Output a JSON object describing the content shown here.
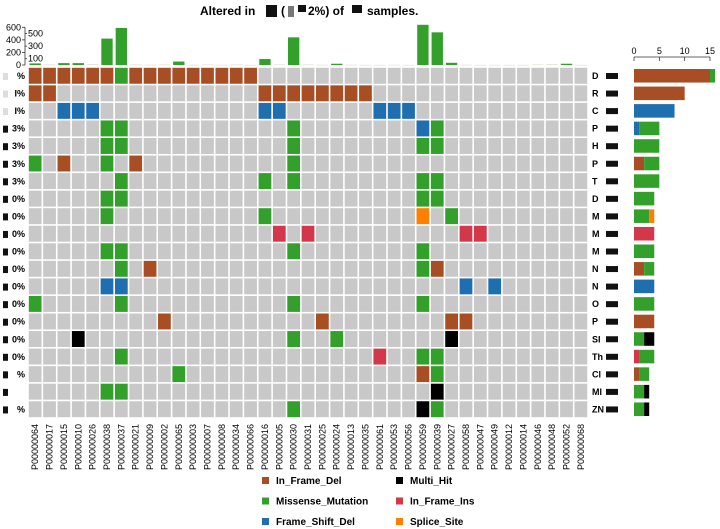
{
  "chart_data": {
    "type": "heatmap",
    "title_parts": [
      "Altered in",
      "(",
      "2%) of",
      "samples."
    ],
    "colors": {
      "In_Frame_Del": "#A84E24",
      "Missense_Mutation": "#33A02C",
      "Frame_Shift_Del": "#1F6FB0",
      "Multi_Hit": "#000000",
      "In_Frame_Ins": "#D2374A",
      "Splice_Site": "#FF7F00",
      "none": "#C8C8C8"
    },
    "codes": {
      "F": "In_Frame_Del",
      "M": "Missense_Mutation",
      "S": "Frame_Shift_Del",
      "H": "Multi_Hit",
      "I": "In_Frame_Ins",
      "P": "Splice_Site"
    },
    "samples": [
      "P00000064",
      "P00000017",
      "P00000015",
      "P00000010",
      "P00000026",
      "P00000038",
      "P00000037",
      "P00000021",
      "P00000009",
      "P00000002",
      "P00000065",
      "P00000003",
      "P00000007",
      "P00000008",
      "P00000034",
      "P00000066",
      "P00000016",
      "P00000005",
      "P00000030",
      "P00000031",
      "P00000025",
      "P00000024",
      "P00000013",
      "P00000035",
      "P00000061",
      "P00000053",
      "P00000056",
      "P00000059",
      "P00000039",
      "P00000027",
      "P00000058",
      "P00000047",
      "P00000049",
      "P00000012",
      "P00000014",
      "P00000046",
      "P00000048",
      "P00000052",
      "P00000068"
    ],
    "tmb": {
      "axis_ticks": [
        0,
        100,
        200,
        300,
        400,
        500,
        600
      ],
      "ylim": [
        0,
        600
      ],
      "values": [
        25,
        10,
        30,
        30,
        15,
        420,
        590,
        10,
        5,
        10,
        55,
        5,
        10,
        5,
        10,
        3,
        95,
        10,
        440,
        10,
        5,
        20,
        5,
        3,
        3,
        5,
        3,
        640,
        520,
        35,
        5,
        3,
        3,
        3,
        3,
        10,
        15,
        20,
        3
      ]
    },
    "gene_bar": {
      "axis_ticks": [
        0,
        5,
        10,
        15
      ],
      "xlim": [
        0,
        15
      ]
    },
    "genes": [
      {
        "name": "D",
        "pct": "%",
        "muts": "F:0-5,7-15;M:6"
      },
      {
        "name": "R",
        "pct": "I%",
        "muts": "F:0-1,16-23"
      },
      {
        "name": "C",
        "pct": "I%",
        "muts": "S:2-4,16-17,24-26"
      },
      {
        "name": "P",
        "pct": "3%",
        "muts": "M:5-6,18,28;S:27"
      },
      {
        "name": "H",
        "pct": "3%",
        "muts": "M:5-6,18,27-28"
      },
      {
        "name": "P",
        "pct": "3%",
        "muts": "M:0,5,18;F:2,7"
      },
      {
        "name": "T",
        "pct": "3%",
        "muts": "M:6,16,18,27-28"
      },
      {
        "name": "D",
        "pct": "0%",
        "muts": "M:5-6,27-28"
      },
      {
        "name": "M",
        "pct": "0%",
        "muts": "M:5,16,29;P:27"
      },
      {
        "name": "M",
        "pct": "0%",
        "muts": "I:17,19,30-31"
      },
      {
        "name": "M",
        "pct": "0%",
        "muts": "M:5-6,18,27"
      },
      {
        "name": "N",
        "pct": "0%",
        "muts": "M:6,27;F:8,28"
      },
      {
        "name": "N",
        "pct": "0%",
        "muts": "S:5-6,30,32"
      },
      {
        "name": "O",
        "pct": "0%",
        "muts": "M:0,6,18,27"
      },
      {
        "name": "P",
        "pct": "0%",
        "muts": "F:9,20,29-30"
      },
      {
        "name": "SI",
        "pct": "0%",
        "muts": "M:18,21;H:3,29"
      },
      {
        "name": "Th",
        "pct": "0%",
        "muts": "M:6,27-28;I:24"
      },
      {
        "name": "Cl",
        "pct": "%",
        "muts": "M:10,28;F:27"
      },
      {
        "name": "MI",
        "pct": "",
        "muts": "M:5-6;H:28"
      },
      {
        "name": "ZN",
        "pct": "%",
        "muts": "M:18,28;H:27"
      }
    ],
    "legend": [
      {
        "label": "In_Frame_Del",
        "key": "In_Frame_Del"
      },
      {
        "label": "Missense_Mutation",
        "key": "Missense_Mutation"
      },
      {
        "label": "Frame_Shift_Del",
        "key": "Frame_Shift_Del"
      },
      {
        "label": "Multi_Hit",
        "key": "Multi_Hit"
      },
      {
        "label": "In_Frame_Ins",
        "key": "In_Frame_Ins"
      },
      {
        "label": "Splice_Site",
        "key": "Splice_Site"
      }
    ]
  }
}
